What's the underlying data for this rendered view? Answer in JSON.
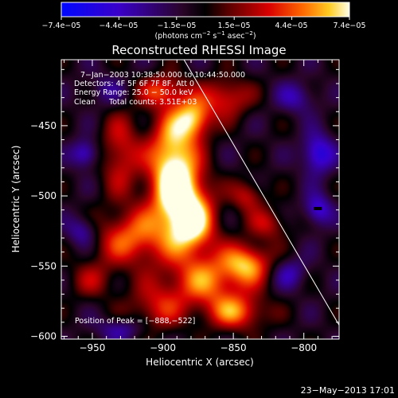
{
  "chart_data": {
    "type": "heatmap",
    "title": "Reconstructed RHESSI Image",
    "xlabel": "Heliocentric X (arcsec)",
    "ylabel": "Heliocentric Y (arcsec)",
    "xlim": [
      -972,
      -775
    ],
    "ylim": [
      -602,
      -403
    ],
    "x_ticks": [
      -950,
      -900,
      -850,
      -800
    ],
    "x_tick_labels": [
      "−950",
      "−900",
      "−850",
      "−800"
    ],
    "y_ticks": [
      -450,
      -500,
      -550,
      -600
    ],
    "y_tick_labels": [
      "−450",
      "−500",
      "−550",
      "−600"
    ],
    "colorbar": {
      "min": -7.4e-05,
      "max": 7.4e-05,
      "tick_labels": [
        "−7.4e−05",
        "−4.4e−05",
        "−1.5e−05",
        "1.5e−05",
        "4.4e−05",
        "7.4e−05"
      ],
      "unit_prefix": "(photons cm",
      "unit_exp1": "−2",
      "unit_mid": " s",
      "unit_exp2": "−1",
      "unit_mid2": " asec",
      "unit_exp3": "−2",
      "unit_suffix": ")"
    },
    "info": {
      "time_range": "7−Jan−2003 10:38:50.000 to 10:44:50.000",
      "detectors": "Detectors: 4F 5F 6F 7F 8F, Att 0",
      "energy": "Energy Range: 25.0 − 50.0 keV",
      "method": "Clean",
      "counts": "Total counts: 3.51E+03"
    },
    "peak_label": "Position of Peak = [−888,−522]",
    "peak": [
      -888,
      -522
    ],
    "grid": false,
    "sources": [
      {
        "x": -893,
        "y": -470,
        "sx": 12,
        "sy": 22,
        "a": 1.0
      },
      {
        "x": -888,
        "y": -500,
        "sx": 14,
        "sy": 16,
        "a": 0.95
      },
      {
        "x": -880,
        "y": -522,
        "sx": 12,
        "sy": 14,
        "a": 0.95
      },
      {
        "x": -878,
        "y": -445,
        "sx": 9,
        "sy": 10,
        "a": 0.85
      },
      {
        "x": -920,
        "y": -530,
        "sx": 20,
        "sy": 14,
        "a": 0.75
      },
      {
        "x": -930,
        "y": -470,
        "sx": 10,
        "sy": 20,
        "a": 0.55
      },
      {
        "x": -870,
        "y": -560,
        "sx": 20,
        "sy": 14,
        "a": 0.75
      },
      {
        "x": -840,
        "y": -548,
        "sx": 12,
        "sy": 10,
        "a": 0.8
      },
      {
        "x": -848,
        "y": -583,
        "sx": 15,
        "sy": 9,
        "a": 0.7
      },
      {
        "x": -905,
        "y": -580,
        "sx": 14,
        "sy": 12,
        "a": 0.5
      },
      {
        "x": -855,
        "y": -430,
        "sx": 12,
        "sy": 10,
        "a": 0.6
      },
      {
        "x": -840,
        "y": -500,
        "sx": 8,
        "sy": 8,
        "a": 0.5
      },
      {
        "x": -825,
        "y": -520,
        "sx": 10,
        "sy": 8,
        "a": 0.45
      },
      {
        "x": -950,
        "y": -560,
        "sx": 12,
        "sy": 10,
        "a": 0.35
      },
      {
        "x": -900,
        "y": -425,
        "sx": 12,
        "sy": 8,
        "a": 0.6
      },
      {
        "x": -955,
        "y": -470,
        "sx": 7,
        "sy": 7,
        "a": -0.6
      },
      {
        "x": -790,
        "y": -470,
        "sx": 8,
        "sy": 10,
        "a": -0.7
      },
      {
        "x": -790,
        "y": -510,
        "sx": 7,
        "sy": 8,
        "a": -0.6
      },
      {
        "x": -957,
        "y": -525,
        "sx": 8,
        "sy": 8,
        "a": -0.5
      },
      {
        "x": -810,
        "y": -555,
        "sx": 9,
        "sy": 8,
        "a": -0.4
      },
      {
        "x": -930,
        "y": -595,
        "sx": 12,
        "sy": 6,
        "a": -0.4
      },
      {
        "x": -805,
        "y": -430,
        "sx": 10,
        "sy": 8,
        "a": -0.4
      },
      {
        "x": -940,
        "y": -425,
        "sx": 10,
        "sy": 8,
        "a": -0.3
      }
    ],
    "limb_line": [
      [
        -885,
        -403
      ],
      [
        -775,
        -592
      ]
    ]
  },
  "footer": {
    "timestamp": "23−May−2013 17:01"
  }
}
